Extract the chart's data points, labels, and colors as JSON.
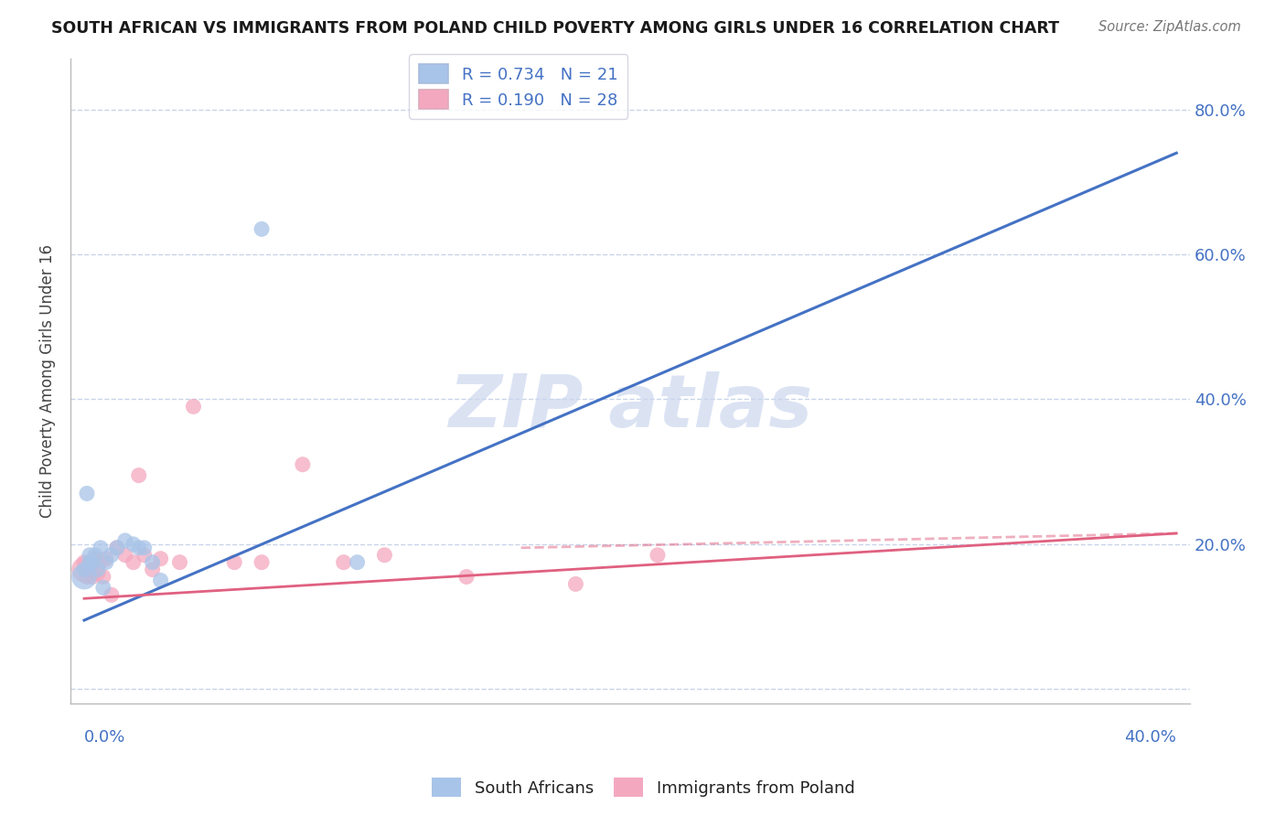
{
  "title": "SOUTH AFRICAN VS IMMIGRANTS FROM POLAND CHILD POVERTY AMONG GIRLS UNDER 16 CORRELATION CHART",
  "source": "Source: ZipAtlas.com",
  "ylabel": "Child Poverty Among Girls Under 16",
  "legend_blue": "R = 0.734   N = 21",
  "legend_pink": "R = 0.190   N = 28",
  "legend_label_blue": "South Africans",
  "legend_label_pink": "Immigrants from Poland",
  "blue_color": "#a8c4e8",
  "pink_color": "#f4a8c0",
  "blue_line_color": "#4472c4",
  "pink_line_color": "#e06080",
  "grid_color": "#c8d4e8",
  "background_color": "#ffffff",
  "watermark_color": "#ccd8ee",
  "blue_line": [
    [
      0.0,
      0.095
    ],
    [
      0.4,
      0.74
    ]
  ],
  "pink_line": [
    [
      0.0,
      0.125
    ],
    [
      0.4,
      0.215
    ]
  ],
  "pink_dash_line": [
    [
      0.16,
      0.195
    ],
    [
      0.4,
      0.215
    ]
  ],
  "blue_scatter_x": [
    0.0,
    0.0,
    0.001,
    0.002,
    0.002,
    0.003,
    0.004,
    0.005,
    0.006,
    0.007,
    0.008,
    0.01,
    0.012,
    0.015,
    0.018,
    0.02,
    0.022,
    0.025,
    0.028,
    0.065,
    0.1
  ],
  "blue_scatter_y": [
    0.155,
    0.165,
    0.27,
    0.175,
    0.185,
    0.175,
    0.185,
    0.165,
    0.195,
    0.14,
    0.175,
    0.185,
    0.195,
    0.205,
    0.2,
    0.195,
    0.195,
    0.175,
    0.15,
    0.635,
    0.175
  ],
  "blue_scatter_s": [
    400,
    150,
    150,
    150,
    150,
    150,
    150,
    150,
    150,
    150,
    150,
    150,
    150,
    150,
    150,
    150,
    150,
    150,
    150,
    150,
    150
  ],
  "pink_scatter_x": [
    0.0,
    0.0,
    0.001,
    0.002,
    0.003,
    0.004,
    0.005,
    0.006,
    0.007,
    0.008,
    0.01,
    0.012,
    0.015,
    0.018,
    0.02,
    0.022,
    0.025,
    0.028,
    0.035,
    0.04,
    0.055,
    0.065,
    0.08,
    0.095,
    0.11,
    0.14,
    0.18,
    0.21
  ],
  "pink_scatter_y": [
    0.165,
    0.175,
    0.155,
    0.165,
    0.155,
    0.18,
    0.16,
    0.175,
    0.155,
    0.18,
    0.13,
    0.195,
    0.185,
    0.175,
    0.295,
    0.185,
    0.165,
    0.18,
    0.175,
    0.39,
    0.175,
    0.175,
    0.31,
    0.175,
    0.185,
    0.155,
    0.145,
    0.185
  ],
  "pink_scatter_s": [
    400,
    150,
    150,
    150,
    150,
    150,
    150,
    150,
    150,
    150,
    150,
    150,
    150,
    150,
    150,
    150,
    150,
    150,
    150,
    150,
    150,
    150,
    150,
    150,
    150,
    150,
    150,
    150
  ],
  "xlim": [
    -0.005,
    0.405
  ],
  "ylim": [
    -0.02,
    0.87
  ],
  "yticks": [
    0.0,
    0.2,
    0.4,
    0.6,
    0.8
  ],
  "ytick_labels": [
    "",
    "20.0%",
    "40.0%",
    "60.0%",
    "80.0%"
  ]
}
